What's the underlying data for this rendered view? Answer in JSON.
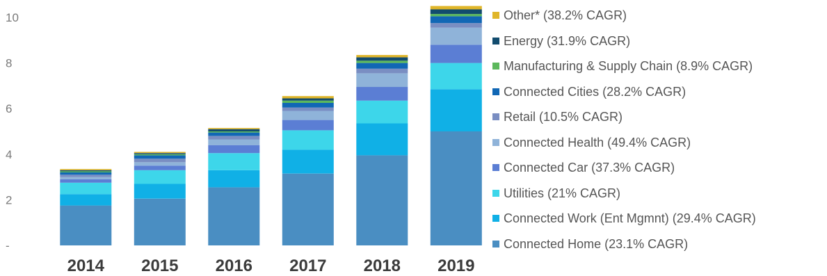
{
  "chart_data": {
    "type": "bar",
    "stacked": true,
    "categories": [
      "2014",
      "2015",
      "2016",
      "2017",
      "2018",
      "2019"
    ],
    "y_ticks": [
      "-",
      "2",
      "4",
      "6",
      "8",
      "10"
    ],
    "ylim": [
      0,
      10.6
    ],
    "legend_position": "right",
    "series": [
      {
        "name": "Connected Home (23.1% CAGR)",
        "color": "#4a8ec2",
        "values": [
          1.75,
          2.05,
          2.55,
          3.15,
          3.95,
          5.0
        ]
      },
      {
        "name": "Connected Work (Ent Mgmnt) (29.4% CAGR)",
        "color": "#10b0e6",
        "values": [
          0.5,
          0.65,
          0.75,
          1.05,
          1.4,
          1.85
        ]
      },
      {
        "name": "Utilities (21% CAGR)",
        "color": "#3dd6ea",
        "values": [
          0.5,
          0.6,
          0.75,
          0.85,
          1.0,
          1.15
        ]
      },
      {
        "name": "Connected Car (37.3% CAGR)",
        "color": "#5b7ed4",
        "values": [
          0.15,
          0.2,
          0.35,
          0.45,
          0.6,
          0.8
        ]
      },
      {
        "name": "Connected Health (49.4% CAGR)",
        "color": "#8fb3d9",
        "values": [
          0.1,
          0.15,
          0.25,
          0.4,
          0.6,
          0.75
        ]
      },
      {
        "name": "Retail (10.5% CAGR)",
        "color": "#7a8ec2",
        "values": [
          0.1,
          0.15,
          0.15,
          0.15,
          0.2,
          0.2
        ]
      },
      {
        "name": "Connected Cities (28.2% CAGR)",
        "color": "#1167b5",
        "values": [
          0.1,
          0.15,
          0.15,
          0.2,
          0.25,
          0.3
        ]
      },
      {
        "name": "Manufacturing & Supply Chain (8.9% CAGR)",
        "color": "#5cb85c",
        "values": [
          0.05,
          0.05,
          0.05,
          0.1,
          0.1,
          0.1
        ]
      },
      {
        "name": "Energy (31.9% CAGR)",
        "color": "#124c6e",
        "values": [
          0.05,
          0.05,
          0.1,
          0.1,
          0.15,
          0.2
        ]
      },
      {
        "name": "Other* (38.2% CAGR)",
        "color": "#e0b62a",
        "values": [
          0.05,
          0.05,
          0.05,
          0.1,
          0.1,
          0.15
        ]
      }
    ]
  }
}
